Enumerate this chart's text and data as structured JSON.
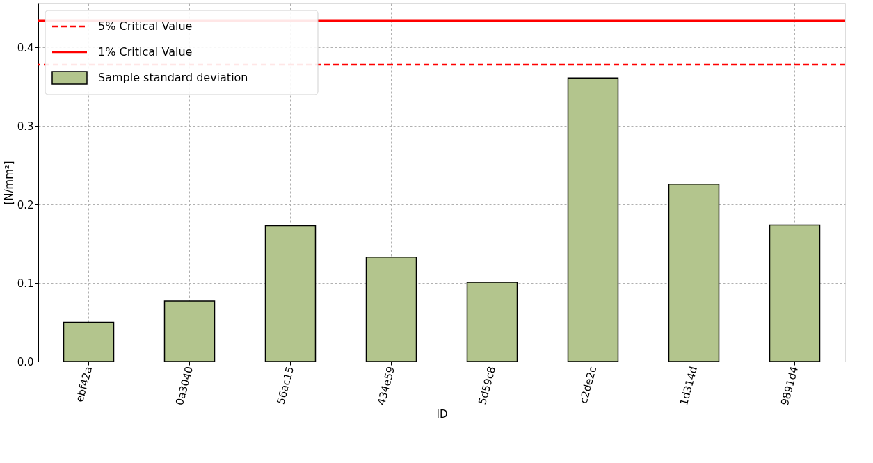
{
  "chart_data": {
    "type": "bar",
    "xlabel": "ID",
    "ylabel": "[N/mm²]",
    "categories": [
      "ebf42a",
      "0a3040",
      "56ac15",
      "434e59",
      "5d59c8",
      "c2de2c",
      "1d314d",
      "9891d4"
    ],
    "series": [
      {
        "name": "Sample standard deviation",
        "color": "#b3c58d",
        "values": [
          0.05,
          0.077,
          0.173,
          0.133,
          0.101,
          0.361,
          0.226,
          0.174
        ]
      }
    ],
    "ref_lines": [
      {
        "axis": "y",
        "value": 0.378,
        "label": "5% Critical Value",
        "color": "#ff0000",
        "line_style": "dashed"
      },
      {
        "axis": "y",
        "value": 0.434,
        "label": "1% Critical Value",
        "color": "#ff0000",
        "line_style": "solid"
      }
    ],
    "ylim": [
      0,
      0.456
    ],
    "yticks": [
      {
        "value": 0,
        "label": "0.0"
      },
      0.1,
      0.2,
      0.3,
      0.4
    ],
    "grid": true,
    "legend": "top left"
  }
}
